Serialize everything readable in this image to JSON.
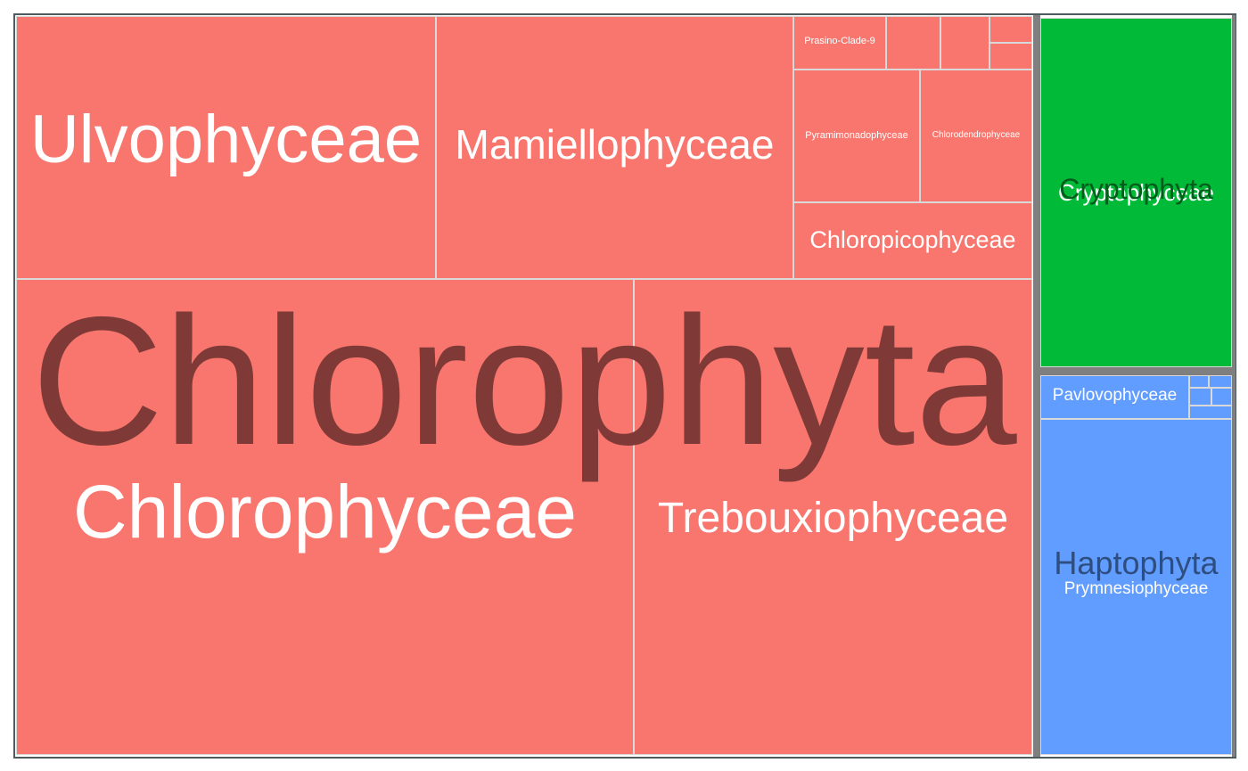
{
  "chart_data": {
    "type": "treemap",
    "title": "",
    "groups": [
      {
        "name": "Chlorophyta",
        "color": "#F8766D",
        "label_color": "#7f3a37",
        "children": [
          {
            "name": "Chlorophyceae",
            "label": "Chlorophyceae"
          },
          {
            "name": "Trebouxiophyceae",
            "label": "Trebouxiophyceae"
          },
          {
            "name": "Ulvophyceae",
            "label": "Ulvophyceae"
          },
          {
            "name": "Mamiellophyceae",
            "label": "Mamiellophyceae"
          },
          {
            "name": "Chloropicophyceae",
            "label": "Chloropicophyceae"
          },
          {
            "name": "Pyramimonadophyceae",
            "label": "Pyramimonadophyceae"
          },
          {
            "name": "Chlorodendrophyceae",
            "label": "Chlorodendrophyceae"
          },
          {
            "name": "Prasino-Clade-9",
            "label": "Prasino-Clade-9"
          },
          {
            "name": "unlabeled-chlorophyta-1",
            "label": ""
          },
          {
            "name": "unlabeled-chlorophyta-2",
            "label": ""
          },
          {
            "name": "unlabeled-chlorophyta-3",
            "label": ""
          },
          {
            "name": "unlabeled-chlorophyta-4",
            "label": ""
          }
        ]
      },
      {
        "name": "Cryptophyta",
        "color": "#00BA38",
        "label_color": "#005d1c",
        "children": [
          {
            "name": "Cryptophyceae",
            "label": "Cryptophyceae"
          }
        ]
      },
      {
        "name": "Haptophyta",
        "color": "#619CFF",
        "label_color": "#2f4e80",
        "children": [
          {
            "name": "Prymnesiophyceae",
            "label": "Prymnesiophyceae"
          },
          {
            "name": "Pavlovophyceae",
            "label": "Pavlovophyceae"
          },
          {
            "name": "unlabeled-haptophyta-1",
            "label": ""
          },
          {
            "name": "unlabeled-haptophyta-2",
            "label": ""
          },
          {
            "name": "unlabeled-haptophyta-3",
            "label": ""
          },
          {
            "name": "unlabeled-haptophyta-4",
            "label": ""
          },
          {
            "name": "unlabeled-haptophyta-5",
            "label": ""
          }
        ]
      }
    ]
  }
}
